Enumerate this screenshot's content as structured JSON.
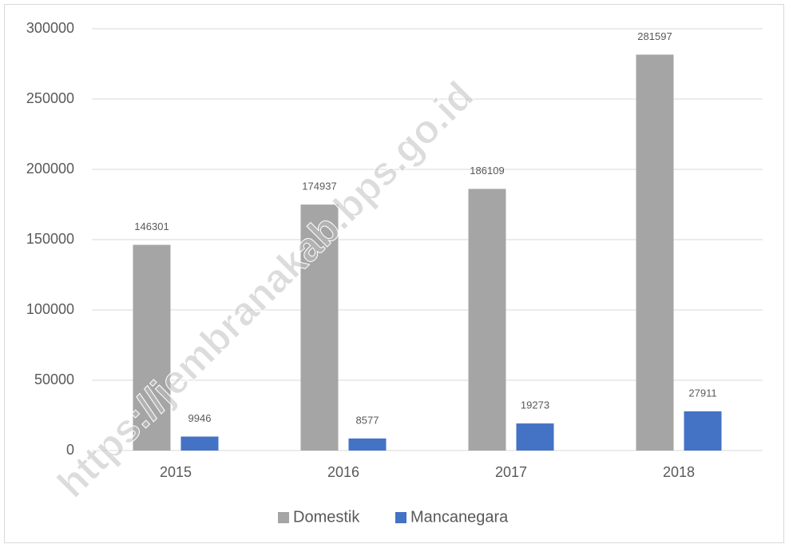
{
  "chart_data": {
    "type": "bar",
    "categories": [
      "2015",
      "2016",
      "2017",
      "2018"
    ],
    "series": [
      {
        "name": "Domestik",
        "color": "#a5a5a5",
        "values": [
          146301,
          174937,
          186109,
          281597
        ]
      },
      {
        "name": "Mancanegara",
        "color": "#4472c4",
        "values": [
          9946,
          8577,
          19273,
          27911
        ]
      }
    ],
    "ylim": [
      0,
      300000
    ],
    "yticks": [
      0,
      50000,
      100000,
      150000,
      200000,
      250000,
      300000
    ],
    "grid": true,
    "legend": "bottom",
    "watermark": "https://jembranakab.bps.go.id"
  }
}
